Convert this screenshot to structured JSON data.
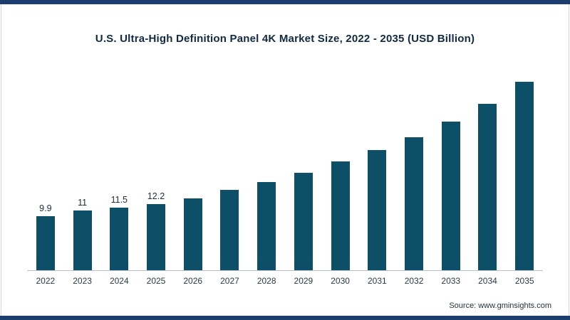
{
  "title": "U.S. Ultra-High Definition Panel 4K Market Size, 2022 - 2035 (USD Billion)",
  "source": "Source: www.gminsights.com",
  "colors": {
    "bar": "#0d4f66",
    "frame_strip": "#1b3e6f",
    "title_text": "#102a43",
    "axis_line": "#b9c2cc"
  },
  "chart_data": {
    "type": "bar",
    "title": "U.S. Ultra-High Definition Panel 4K Market Size, 2022 - 2035 (USD Billion)",
    "categories": [
      "2022",
      "2023",
      "2024",
      "2025",
      "2026",
      "2027",
      "2028",
      "2029",
      "2030",
      "2031",
      "2032",
      "2033",
      "2034",
      "2035"
    ],
    "values": [
      9.9,
      11,
      11.5,
      12.2,
      13.3,
      14.8,
      16.2,
      18,
      20,
      22.2,
      24.5,
      27.4,
      30.7,
      34.7
    ],
    "data_labels": [
      "9.9",
      "11",
      "11.5",
      "12.2",
      "",
      "",
      "",
      "",
      "",
      "",
      "",
      "",
      "",
      ""
    ],
    "xlabel": "",
    "ylabel": "",
    "ylim": [
      0,
      38
    ],
    "grid": false,
    "legend": false,
    "source": "Source: www.gminsights.com"
  }
}
